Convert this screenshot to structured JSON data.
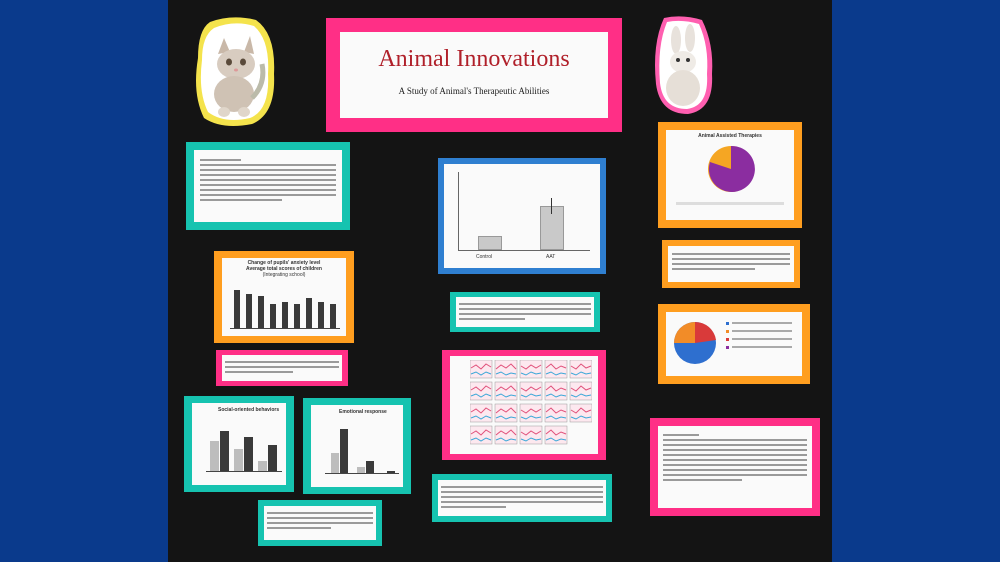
{
  "poster": {
    "title": "Animal Innovations",
    "subtitle": "A Study of Animal's Therapeutic Abilities"
  },
  "charts": {
    "anxiety_title_line1": "Change of pupils' anxiety level",
    "anxiety_title_line2": "Average total scores of children",
    "anxiety_title_line3": "(Integrating school)",
    "social_title": "Social-oriented behaviors",
    "emotional_title": "Emotional response",
    "pie_title": "Animal Assisted Therapies",
    "bar_top_cat1": "Control",
    "bar_top_cat2": "AAT"
  },
  "colors": {
    "background": "#0a3a8c",
    "board": "#141414",
    "teal_mat": "#16c3b0",
    "orange_mat": "#ff9e1f",
    "pink_mat": "#ff2f86",
    "blue_mat": "#2f7fd0",
    "title_red": "#b0202a"
  },
  "icons": [
    "kitten-cutout",
    "rabbit-cutout"
  ]
}
